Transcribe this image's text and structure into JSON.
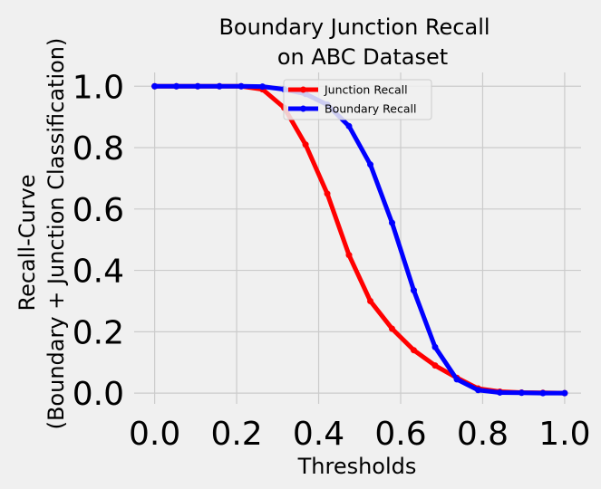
{
  "chart_data": {
    "type": "line",
    "title_lines": [
      "Boundary Junction Recall",
      "on ABC  Dataset"
    ],
    "xlabel": "Thresholds",
    "ylabel_lines": [
      "Recall-Curve",
      "(Boundary + Junction Classification)"
    ],
    "xlim": [
      -0.05,
      1.04
    ],
    "ylim": [
      -0.035,
      1.045
    ],
    "xticks": [
      0.0,
      0.2,
      0.4,
      0.6,
      0.8,
      1.0
    ],
    "yticks": [
      0.0,
      0.2,
      0.4,
      0.6,
      0.8,
      1.0
    ],
    "xtick_labels": [
      "0.0",
      "0.2",
      "0.4",
      "0.6",
      "0.8",
      "1.0"
    ],
    "ytick_labels": [
      "0.0",
      "0.2",
      "0.4",
      "0.6",
      "0.8",
      "1.0"
    ],
    "grid": true,
    "legend_position": "top-center",
    "x": [
      0.0,
      0.053,
      0.105,
      0.158,
      0.211,
      0.263,
      0.316,
      0.368,
      0.421,
      0.474,
      0.526,
      0.579,
      0.632,
      0.684,
      0.737,
      0.789,
      0.842,
      0.895,
      0.947,
      1.0
    ],
    "series": [
      {
        "name": "Junction Recall",
        "color": "#ff0000",
        "values": [
          1.0,
          1.0,
          1.0,
          1.0,
          1.0,
          0.99,
          0.93,
          0.81,
          0.65,
          0.45,
          0.3,
          0.21,
          0.14,
          0.09,
          0.05,
          0.015,
          0.005,
          0.002,
          0.001,
          0.0
        ]
      },
      {
        "name": "Boundary Recall",
        "color": "#0000ff",
        "values": [
          1.0,
          1.0,
          1.0,
          1.0,
          1.0,
          0.999,
          0.99,
          0.975,
          0.94,
          0.87,
          0.745,
          0.555,
          0.335,
          0.15,
          0.045,
          0.01,
          0.002,
          0.001,
          0.0,
          0.0
        ]
      }
    ]
  }
}
